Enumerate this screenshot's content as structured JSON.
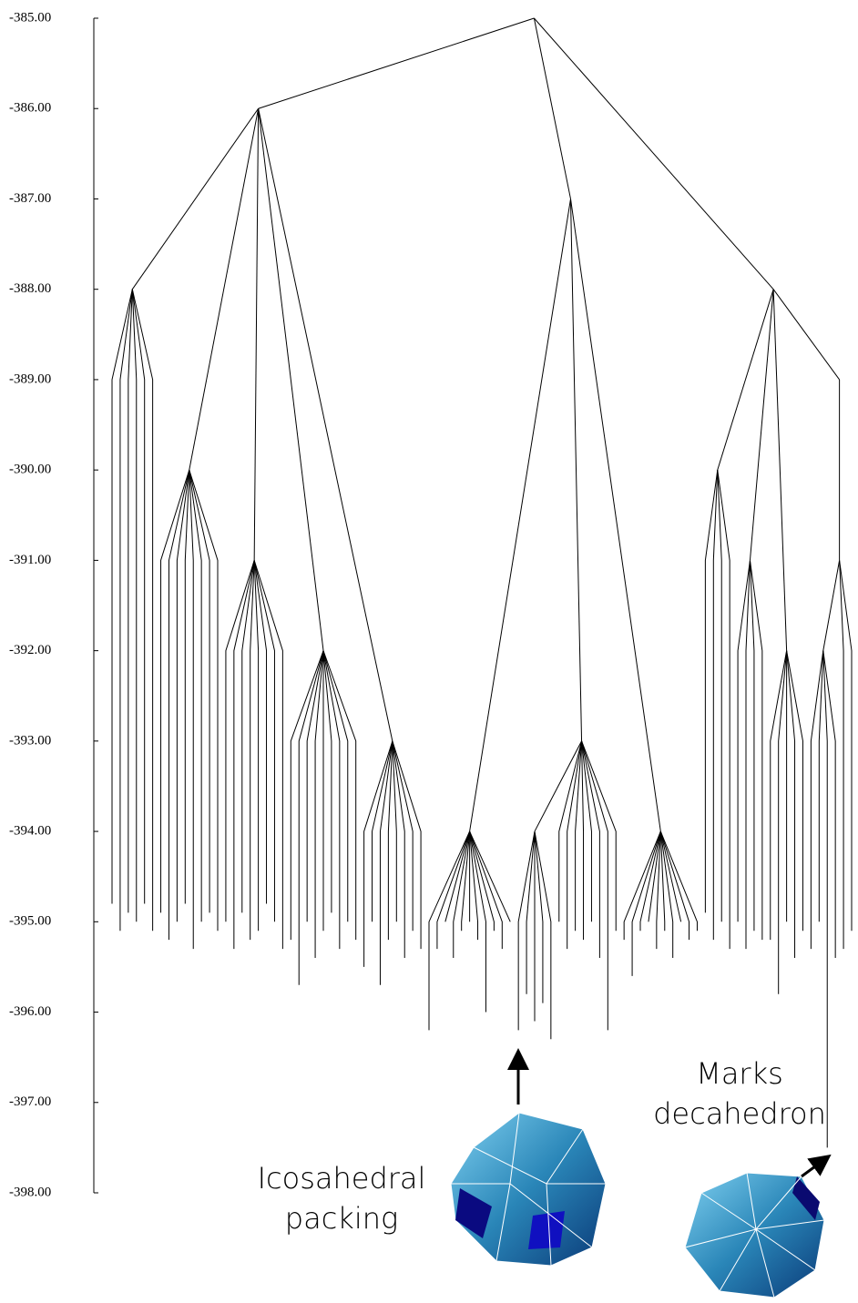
{
  "chart_data": {
    "type": "disconnectivity",
    "ylim": [
      -385,
      -398
    ],
    "yticks": [
      {
        "value": -385,
        "label": "-385.00"
      },
      {
        "value": -386,
        "label": "-386.00"
      },
      {
        "value": -387,
        "label": "-387.00"
      },
      {
        "value": -388,
        "label": "-388.00"
      },
      {
        "value": -389,
        "label": "-389.00"
      },
      {
        "value": -390,
        "label": "-390.00"
      },
      {
        "value": -391,
        "label": "-391.00"
      },
      {
        "value": -392,
        "label": "-392.00"
      },
      {
        "value": -393,
        "label": "-393.00"
      },
      {
        "value": -394,
        "label": "-394.00"
      },
      {
        "value": -395,
        "label": "-395.00"
      },
      {
        "value": -396,
        "label": "-396.00"
      },
      {
        "value": -397,
        "label": "-397.00"
      },
      {
        "value": -398,
        "label": "-398.00"
      }
    ],
    "color": "#000000",
    "annotations": [
      [
        "Icosahedral",
        "packing"
      ],
      [
        "Marks",
        "decahedron"
      ]
    ],
    "tree": {
      "energy": -385,
      "children": [
        {
          "energy": -386,
          "children": [
            {
              "energy": -388,
              "minima": [
                -394.8,
                -395.1,
                -394.9,
                -395.0,
                -394.8,
                -395.1
              ]
            },
            {
              "energy": -390,
              "minima": [
                -394.9,
                -395.2,
                -395.0,
                -394.8,
                -395.3,
                -395.0,
                -394.9,
                -395.1
              ]
            },
            {
              "energy": -391,
              "minima": [
                -395.0,
                -395.3,
                -394.9,
                -395.2,
                -395.1,
                -394.8,
                -395.0,
                -395.3
              ]
            },
            {
              "energy": -392,
              "minima": [
                -395.2,
                -395.7,
                -395.0,
                -395.4,
                -395.1,
                -394.9,
                -395.3,
                -395.0,
                -395.2
              ]
            },
            {
              "energy": -393,
              "minima": [
                -395.5,
                -395.0,
                -395.7,
                -395.2,
                -395.0,
                -395.4,
                -395.1,
                -395.3
              ]
            }
          ]
        },
        {
          "energy": -387,
          "children": [
            {
              "energy": -394,
              "minima": [
                -396.2,
                -395.3,
                -395.0,
                -395.4,
                -395.1,
                -395.0,
                -395.2,
                -396.0,
                -395.1,
                -395.3,
                -395.0
              ]
            },
            {
              "energy": -393,
              "children": [
                {
                  "energy": -394,
                  "minima": [
                    -396.2,
                    -395.8,
                    -396.1,
                    -395.9,
                    -396.3
                  ]
                }
              ],
              "minima": [
                -395.0,
                -395.3,
                -395.1,
                -395.2,
                -395.0,
                -395.4,
                -396.2,
                -395.1
              ]
            },
            {
              "energy": -394,
              "minima": [
                -395.2,
                -395.6,
                -395.1,
                -395.0,
                -395.3,
                -395.1,
                -395.4,
                -395.0,
                -395.2,
                -395.1
              ]
            }
          ]
        },
        {
          "energy": -388,
          "children": [
            {
              "energy": -390,
              "minima": [
                -394.9,
                -395.2,
                -395.0,
                -395.3
              ]
            },
            {
              "energy": -391,
              "minima": [
                -395.0,
                -395.3,
                -395.1,
                -395.2
              ]
            },
            {
              "energy": -392,
              "minima": [
                -395.2,
                -395.8,
                -395.0,
                -395.4,
                -395.1
              ]
            },
            {
              "energy": -389,
              "children": [
                {
                  "energy": -391,
                  "children": [
                    {
                      "energy": -392,
                      "minima": [
                        -395.3,
                        -395.0,
                        -397.5,
                        -395.4
                      ]
                    }
                  ],
                  "minima": [
                    -395.3,
                    -395.1
                  ]
                }
              ]
            }
          ]
        }
      ]
    }
  }
}
